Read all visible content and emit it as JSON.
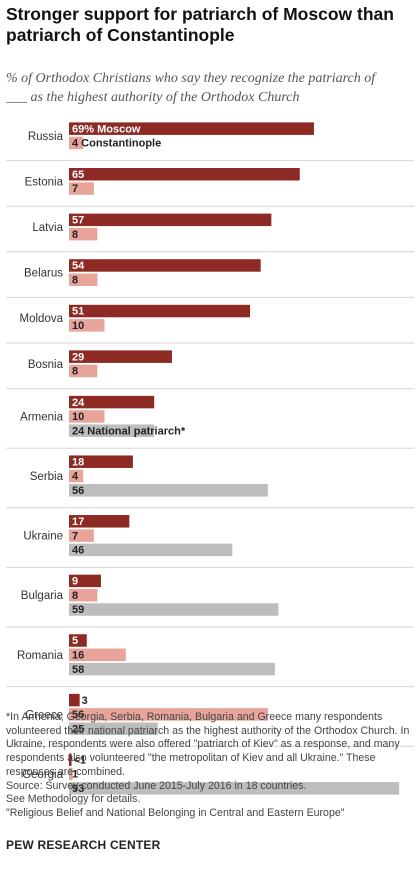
{
  "title": "Stronger support for patriarch of Moscow than patriarch of Constantinople",
  "subtitle_line1": "% of Orthodox Christians who say they recognize the patriarch of",
  "subtitle_line2": "___ as the highest authority of the Orthodox Church",
  "notes": [
    "*In Armenia, Georgia, Serbia, Romania, Bulgaria and Greece many respondents volunteered their national patriarch as the highest authority of the Orthodox Church. In Ukraine, respondents were also offered \"patriarch of Kiev\" as a response, and many respondents also volunteered \"the metropolitan of Kiev and all Ukraine.\" These responses are combined.",
    "Source: Survey conducted June 2015-July 2016 in 18 countries.",
    "See Methodology for details.",
    "\"Religious Belief and National Belonging in Central and Eastern Europe\""
  ],
  "brand": "PEW RESEARCH CENTER",
  "colors": {
    "moscow": "#8c2a23",
    "constantinople": "#e8a39b",
    "national": "#bdbdbd",
    "divider": "#d6d6d6"
  },
  "chart_data": {
    "type": "bar",
    "orientation": "horizontal",
    "categories": [
      "Russia",
      "Estonia",
      "Latvia",
      "Belarus",
      "Moldova",
      "Bosnia",
      "Armenia",
      "Serbia",
      "Ukraine",
      "Bulgaria",
      "Romania",
      "Greece",
      "Georgia"
    ],
    "series": [
      {
        "name": "Moscow",
        "values": [
          69,
          65,
          57,
          54,
          51,
          29,
          24,
          18,
          17,
          9,
          5,
          3,
          0.5
        ],
        "labels": [
          "69% Moscow",
          "65",
          "57",
          "54",
          "51",
          "29",
          "24",
          "18",
          "17",
          "9",
          "5",
          "3",
          "<1"
        ]
      },
      {
        "name": "Constantinople",
        "values": [
          4,
          7,
          8,
          8,
          10,
          8,
          10,
          4,
          7,
          8,
          16,
          56,
          1
        ],
        "labels": [
          "4 Constantinople",
          "7",
          "8",
          "8",
          "10",
          "8",
          "10",
          "4",
          "7",
          "8",
          "16",
          "56",
          "1"
        ]
      },
      {
        "name": "National patriarch*",
        "values": [
          null,
          null,
          null,
          null,
          null,
          null,
          24,
          56,
          46,
          59,
          58,
          25,
          93
        ],
        "labels": [
          null,
          null,
          null,
          null,
          null,
          null,
          "24 National patriarch*",
          "56",
          "46",
          "59",
          "58",
          "25",
          "93"
        ]
      }
    ],
    "xlim": [
      0,
      100
    ]
  }
}
